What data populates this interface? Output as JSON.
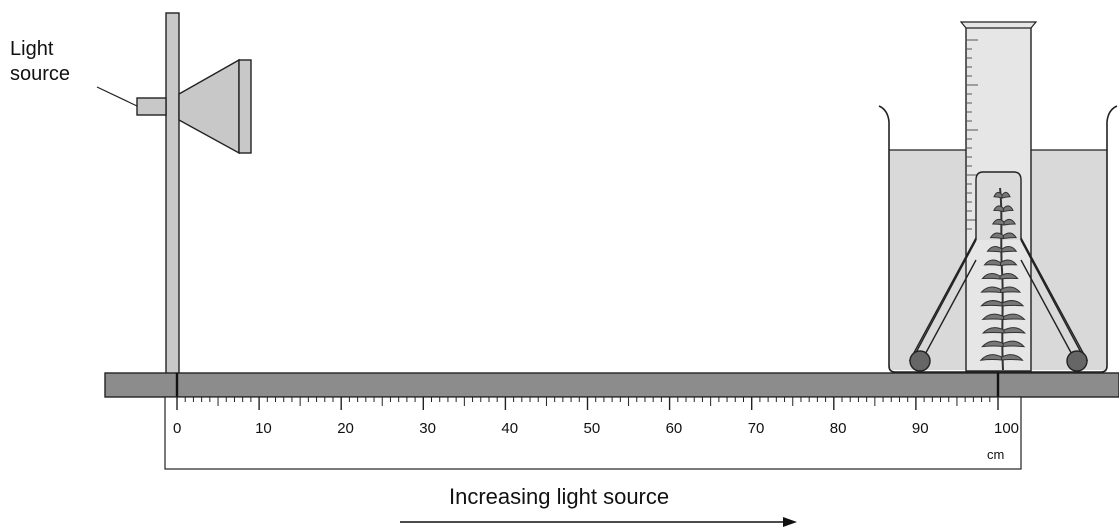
{
  "labels": {
    "light_source_line1": "Light",
    "light_source_line2": "source",
    "ruler_unit": "cm",
    "arrow_caption": "Increasing light source"
  },
  "ruler": {
    "tick_labels": [
      "0",
      "10",
      "20",
      "30",
      "40",
      "50",
      "60",
      "70",
      "80",
      "90",
      "100"
    ],
    "min_cm": 0,
    "max_cm": 100,
    "marked_positions_cm": [
      0,
      100
    ]
  },
  "colors": {
    "stand": "#c8c8c8",
    "bench": "#8c8c8c",
    "water": "#d9d9d9",
    "plant": "#777777",
    "weight": "#666666",
    "outline": "#222222"
  }
}
